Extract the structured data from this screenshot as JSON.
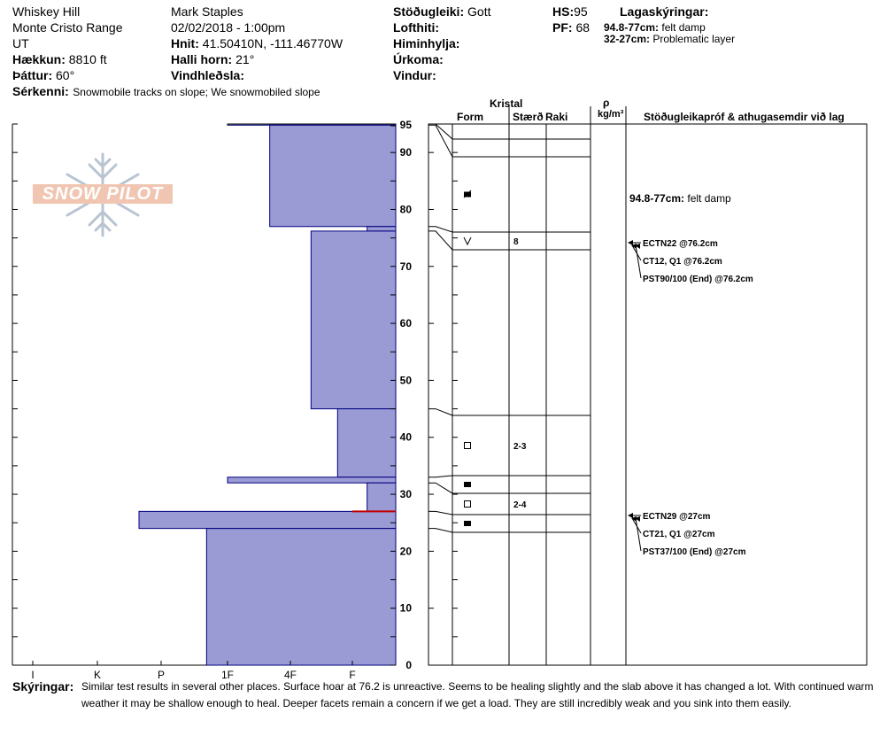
{
  "header": {
    "location": "Whiskey Hill",
    "range": "Monte Cristo Range",
    "state": "UT",
    "elevation_label": "Hækkun:",
    "elevation_value": "8810 ft",
    "aspect_label": "Þáttur:",
    "aspect_value": "60°",
    "observer": "Mark Staples",
    "datetime": "02/02/2018 - 1:00pm",
    "coords_label": "Hnit:",
    "coords_value": "41.50410N, -111.46770W",
    "slope_label": "Halli horn:",
    "slope_value": "21°",
    "wind_loading_label": "Vindhleðsla:",
    "wind_loading_value": "",
    "stability_label": "Stöðugleiki:",
    "stability_value": "Gott",
    "air_temp_label": "Lofthiti:",
    "sky_label": "Himinhylja:",
    "precip_label": "Úrkoma:",
    "wind_label": "Vindur:",
    "hs_label": "HS:",
    "hs_value": "95",
    "pf_label": "PF:",
    "pf_value": "68",
    "layers_title": "Lagaskýringar:",
    "layer_notes": [
      {
        "range": "94.8-77cm:",
        "text": "felt damp"
      },
      {
        "range": "32-27cm:",
        "text": "Problematic layer"
      }
    ],
    "features_label": "Sérkenni:",
    "features_value": "Snowmobile tracks on slope; We snowmobiled slope"
  },
  "watermark": {
    "text": "SNOW PILOT",
    "icon": "snowflake-icon"
  },
  "columns": {
    "crystal": "Kristal",
    "form": "Form",
    "size": "Stærð",
    "moisture": "Raki",
    "rho": "ρ",
    "density_unit": "kg/m³",
    "tests": "Stöðugleikapróf & athugasemdir við lag"
  },
  "hardness_scale": [
    "I",
    "K",
    "P",
    "1F",
    "4F",
    "F"
  ],
  "depth_ticks": [
    "0",
    "10",
    "20",
    "30",
    "40",
    "50",
    "60",
    "70",
    "80",
    "90",
    "95"
  ],
  "colors": {
    "layer_fill": "#9a9ad4",
    "layer_edge": "#000080",
    "problem_line": "#c00000"
  },
  "layers": [
    {
      "top": 95,
      "bottom": 94.8,
      "hardness": "1F",
      "form_icon": "",
      "size": ""
    },
    {
      "top": 94.8,
      "bottom": 77,
      "hardness": "4F-",
      "form_icon": "melt-forms-icon",
      "size": ""
    },
    {
      "top": 77,
      "bottom": 76.2,
      "hardness": "F+",
      "form_icon": "surface-hoar-icon",
      "size": "8"
    },
    {
      "top": 76.2,
      "bottom": 45,
      "hardness": "4F+",
      "form_icon": "",
      "size": ""
    },
    {
      "top": 45,
      "bottom": 33,
      "hardness": "F-",
      "form_icon": "faceted-icon",
      "size": "2-3"
    },
    {
      "top": 33,
      "bottom": 32,
      "hardness": "1F",
      "form_icon": "melt-forms-icon",
      "size": ""
    },
    {
      "top": 32,
      "bottom": 27,
      "hardness": "F+",
      "form_icon": "faceted-icon",
      "size": "2-4"
    },
    {
      "top": 27,
      "bottom": 24,
      "hardness": "P-",
      "form_icon": "melt-forms-icon",
      "size": ""
    },
    {
      "top": 24,
      "bottom": 0,
      "hardness": "1F-",
      "form_icon": "",
      "size": ""
    }
  ],
  "layer_comment": {
    "range": "94.8-77cm:",
    "text": "felt damp"
  },
  "tests": [
    {
      "depth": 76.2,
      "results": [
        "ECTN22 @76.2cm",
        "CT12, Q1 @76.2cm",
        "PST90/100 (End) @76.2cm"
      ]
    },
    {
      "depth": 27,
      "results": [
        "ECTN29 @27cm",
        "CT21, Q1 @27cm",
        "PST37/100 (End) @27cm"
      ]
    }
  ],
  "notes_label": "Skýringar:",
  "notes_line1": "Similar test results in several other places. Surface hoar at 76.2 is unreactive. Seems to be healing slightly and the slab above it has changed a lot. With continued warm",
  "notes_line2": "weather it may be shallow enough to heal. Deeper facets remain a concern if we get a load. They are still incredibly weak and you sink into them easily."
}
